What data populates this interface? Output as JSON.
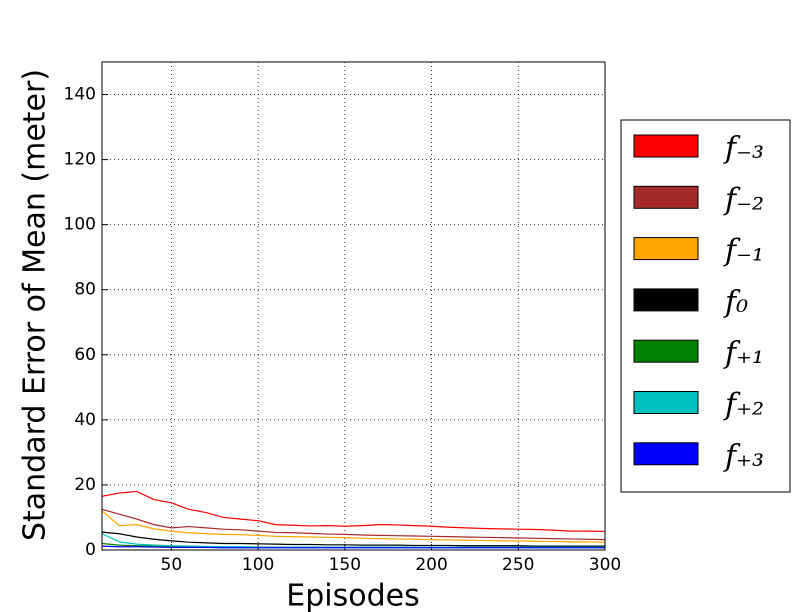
{
  "chart_data": {
    "type": "line",
    "xlabel": "Episodes",
    "ylabel": "Standard Error of Mean (meter)",
    "x": [
      10,
      20,
      30,
      40,
      50,
      60,
      70,
      80,
      90,
      100,
      110,
      120,
      130,
      140,
      150,
      160,
      170,
      180,
      190,
      200,
      210,
      220,
      230,
      240,
      250,
      260,
      270,
      280,
      290,
      300
    ],
    "xlim": [
      10,
      300
    ],
    "xticks": [
      50,
      100,
      150,
      200,
      250,
      300
    ],
    "ylim": [
      0,
      150
    ],
    "yticks": [
      0,
      20,
      40,
      60,
      80,
      100,
      120,
      140
    ],
    "grid": true,
    "legend": "right",
    "series": [
      {
        "name": "f₋₃",
        "color": "#ff0000",
        "values": [
          16.5,
          17.5,
          18,
          15.5,
          14.5,
          12.5,
          11.5,
          10,
          9.5,
          9,
          7.8,
          7.6,
          7.4,
          7.5,
          7.3,
          7.5,
          7.8,
          7.7,
          7.5,
          7.3,
          7,
          6.8,
          6.6,
          6.5,
          6.4,
          6.3,
          6.1,
          5.8,
          5.8,
          5.7
        ]
      },
      {
        "name": "f₋₂",
        "color": "#a52a2a",
        "values": [
          12.5,
          11,
          9.5,
          7.8,
          6.8,
          7.2,
          6.8,
          6.4,
          6.2,
          5.8,
          5.4,
          5.3,
          5.1,
          4.9,
          4.8,
          4.6,
          4.5,
          4.4,
          4.3,
          4.2,
          4.1,
          4,
          3.9,
          3.8,
          3.7,
          3.6,
          3.5,
          3.4,
          3.3,
          3.2
        ]
      },
      {
        "name": "f₋₁",
        "color": "#ffa500",
        "values": [
          12,
          7.5,
          7.8,
          6.5,
          5.8,
          5.3,
          5,
          4.8,
          4.7,
          4.5,
          4.2,
          4.1,
          4,
          3.9,
          3.8,
          3.6,
          3.5,
          3.4,
          3.3,
          3.2,
          3.1,
          3,
          2.9,
          2.8,
          2.8,
          2.7,
          2.6,
          2.5,
          2.5,
          2.4
        ]
      },
      {
        "name": "f₀",
        "color": "#000000",
        "values": [
          5.5,
          5,
          4,
          3.3,
          2.8,
          2.4,
          2.2,
          2,
          2,
          1.9,
          1.8,
          1.7,
          1.7,
          1.6,
          1.6,
          1.5,
          1.5,
          1.5,
          1.4,
          1.4,
          1.4,
          1.3,
          1.3,
          1.3,
          1.3,
          1.2,
          1.2,
          1.2,
          1.2,
          1.2
        ]
      },
      {
        "name": "f₊₁",
        "color": "#008000",
        "values": [
          2,
          1.5,
          1.3,
          1.2,
          1.1,
          1,
          1,
          0.9,
          0.9,
          0.9,
          0.8,
          0.8,
          0.8,
          0.8,
          0.8,
          0.8,
          0.8,
          0.8,
          0.8,
          0.8,
          0.8,
          0.8,
          0.8,
          0.8,
          0.8,
          0.8,
          0.8,
          0.8,
          0.8,
          0.8
        ]
      },
      {
        "name": "f₊₂",
        "color": "#00bfbf",
        "values": [
          5,
          2.5,
          1.8,
          1.5,
          1.3,
          1.2,
          1.1,
          1,
          1,
          0.9,
          0.9,
          0.9,
          0.9,
          0.9,
          0.9,
          0.9,
          0.9,
          0.9,
          0.9,
          0.9,
          0.9,
          0.9,
          0.9,
          0.9,
          0.9,
          0.9,
          0.9,
          0.9,
          0.9,
          0.9
        ]
      },
      {
        "name": "f₊₃",
        "color": "#0000ff",
        "values": [
          1.2,
          1,
          1,
          0.9,
          0.8,
          0.8,
          0.8,
          0.7,
          0.7,
          0.7,
          0.7,
          0.7,
          0.7,
          0.7,
          0.7,
          0.7,
          0.7,
          0.7,
          0.7,
          0.7,
          0.7,
          0.7,
          0.7,
          0.7,
          0.7,
          0.7,
          0.7,
          0.7,
          0.7,
          0.7
        ]
      }
    ]
  }
}
